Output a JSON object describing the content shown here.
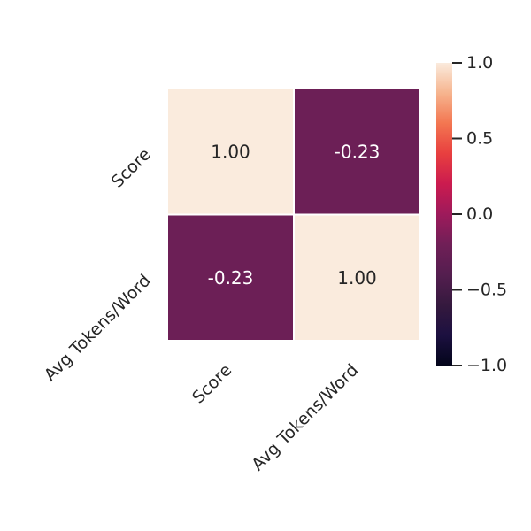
{
  "chart_data": {
    "type": "heatmap",
    "title": "",
    "row_labels": [
      "Score",
      "Avg Tokens/Word"
    ],
    "col_labels": [
      "Score",
      "Avg Tokens/Word"
    ],
    "values": [
      [
        1.0,
        -0.23
      ],
      [
        -0.23,
        1.0
      ]
    ],
    "cell_labels": [
      [
        "1.00",
        "-0.23"
      ],
      [
        "-0.23",
        "1.00"
      ]
    ],
    "value_range": [
      -1.0,
      1.0
    ],
    "colormap": "rocket",
    "colorbar": {
      "ticks": [
        1.0,
        0.5,
        0.0,
        -0.5,
        -1.0
      ],
      "tick_labels": [
        "1.0",
        "0.5",
        "0.0",
        "−0.5",
        "−1.0"
      ],
      "placement": "right"
    },
    "grid_lines": true,
    "colors": {
      "high": "#faebdd",
      "mid": "#9b1a5b",
      "low": "#03051a"
    }
  }
}
